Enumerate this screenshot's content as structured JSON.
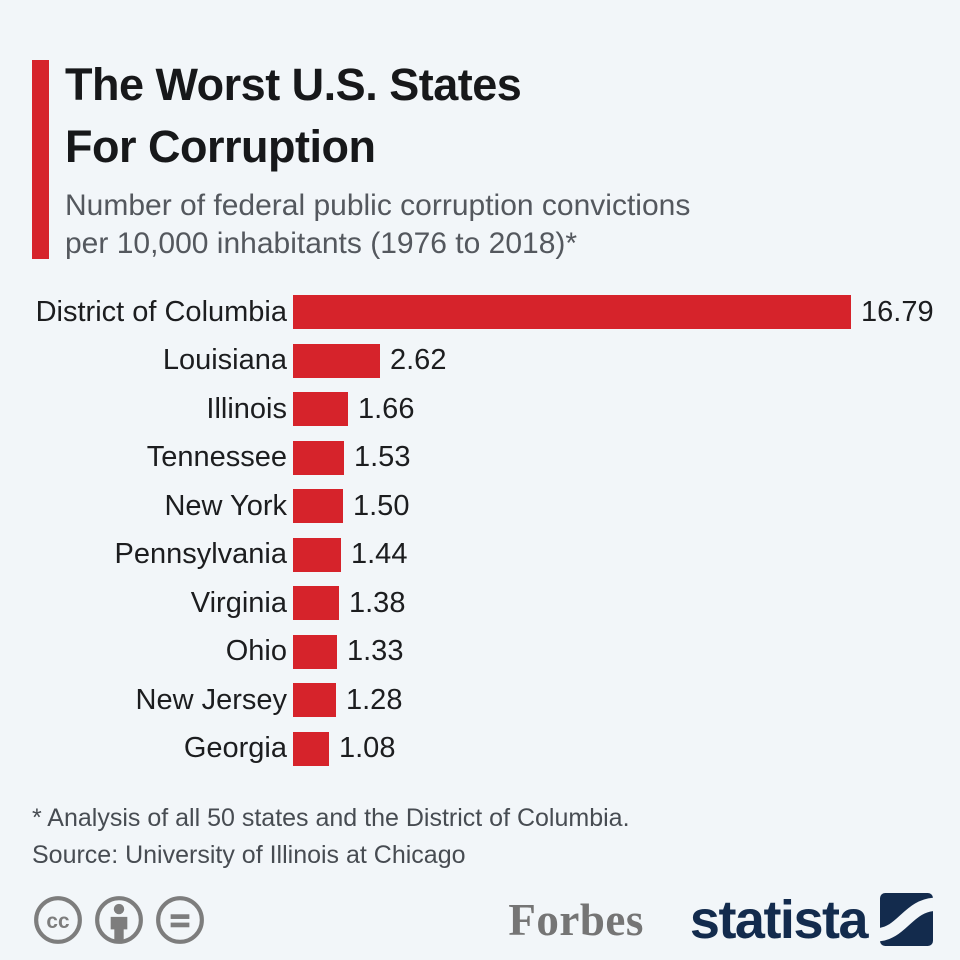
{
  "header": {
    "title_line1": "The Worst U.S. States",
    "title_line2": "For Corruption",
    "subtitle_line1": "Number of federal public corruption convictions",
    "subtitle_line2": "per 10,000 inhabitants (1976 to 2018)*"
  },
  "chart_data": {
    "type": "bar",
    "orientation": "horizontal",
    "title": "The Worst U.S. States For Corruption",
    "subtitle": "Number of federal public corruption convictions per 10,000 inhabitants (1976 to 2018)*",
    "categories": [
      "District of Columbia",
      "Louisiana",
      "Illinois",
      "Tennessee",
      "New York",
      "Pennsylvania",
      "Virginia",
      "Ohio",
      "New Jersey",
      "Georgia"
    ],
    "values": [
      16.79,
      2.62,
      1.66,
      1.53,
      1.5,
      1.44,
      1.38,
      1.33,
      1.28,
      1.08
    ],
    "value_labels": [
      "16.79",
      "2.62",
      "1.66",
      "1.53",
      "1.50",
      "1.44",
      "1.38",
      "1.33",
      "1.28",
      "1.08"
    ],
    "bar_color": "#d6232b",
    "xlim": [
      0,
      16.79
    ],
    "grid": false,
    "legend": false,
    "value_label_position": "right-of-bar"
  },
  "notes": {
    "footnote": "* Analysis of all 50 states and the District of Columbia.",
    "source": "Source: University of Illinois at Chicago"
  },
  "branding": {
    "forbes": "Forbes",
    "statista": "statista"
  },
  "license": {
    "icons": [
      "cc-icon",
      "attribution-icon",
      "no-derivatives-icon"
    ]
  },
  "colors": {
    "background": "#f2f6f9",
    "accent_red": "#d6232b",
    "title_text": "#17181a",
    "subtitle_text": "#54585e",
    "note_text": "#474c52",
    "license_gray": "#7d7d7d",
    "forbes_gray": "#757575",
    "statista_navy": "#132b4d"
  }
}
